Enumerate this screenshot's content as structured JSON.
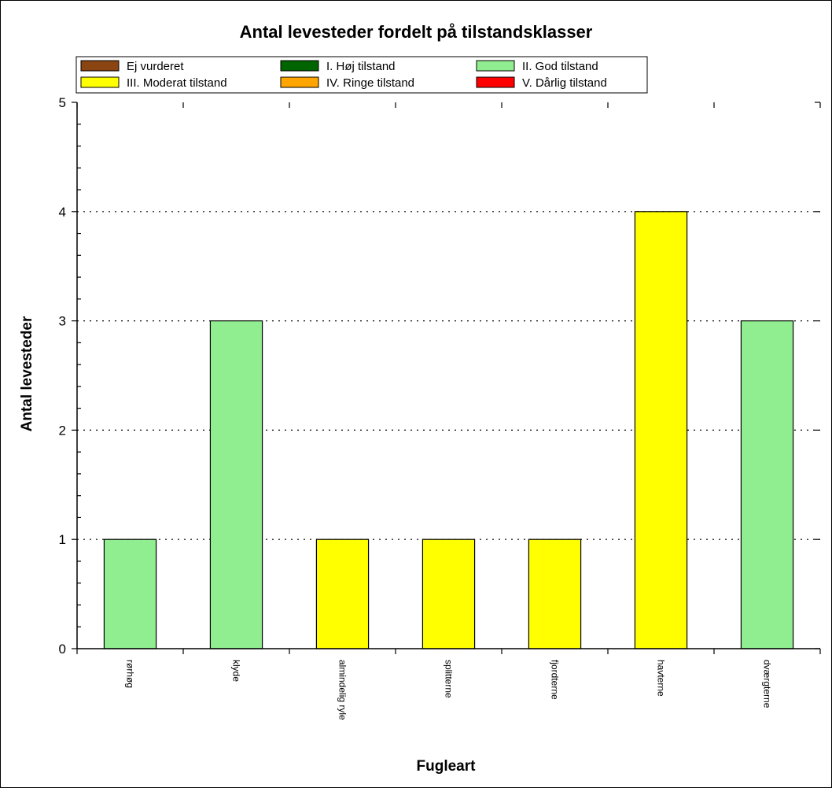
{
  "chart_data": {
    "type": "bar",
    "title": "Antal levesteder fordelt på tilstandsklasser",
    "xlabel": "Fugleart",
    "ylabel": "Antal levesteder",
    "ylim": [
      0,
      5
    ],
    "yticks": [
      "0",
      "1",
      "2",
      "3",
      "4",
      "5"
    ],
    "grid": "horizontal dotted",
    "legend_position": "top",
    "legend": [
      {
        "label": "Ej vurderet",
        "color": "#8B4513"
      },
      {
        "label": "I. Høj tilstand",
        "color": "#006400"
      },
      {
        "label": "II. God tilstand",
        "color": "#90EE90"
      },
      {
        "label": "III. Moderat tilstand",
        "color": "#FFFF00"
      },
      {
        "label": "IV. Ringe tilstand",
        "color": "#FFA500"
      },
      {
        "label": "V. Dårlig tilstand",
        "color": "#FF0000"
      }
    ],
    "categories": [
      "rørhøg",
      "klyde",
      "almindelig ryle",
      "splitterne",
      "fjordterne",
      "havterne",
      "dværgterne"
    ],
    "values": [
      1,
      3,
      1,
      1,
      1,
      4,
      3
    ],
    "bar_classes": [
      "II. God tilstand",
      "II. God tilstand",
      "III. Moderat tilstand",
      "III. Moderat tilstand",
      "III. Moderat tilstand",
      "III. Moderat tilstand",
      "II. God tilstand"
    ]
  }
}
